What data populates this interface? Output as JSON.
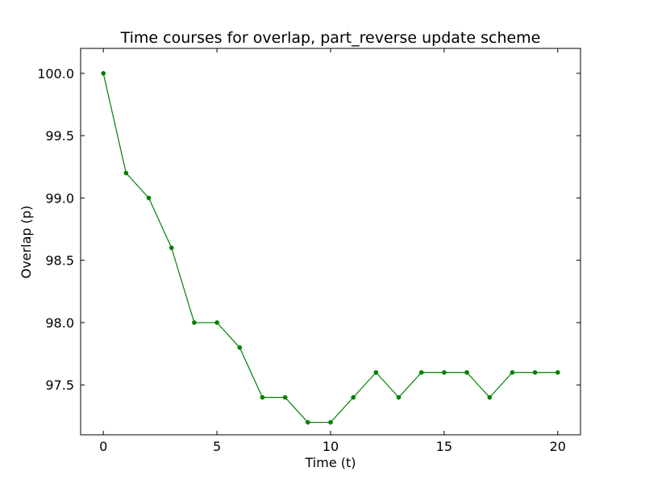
{
  "chart_data": {
    "type": "line",
    "title": "Time courses for overlap, part_reverse update scheme",
    "xlabel": "Time (t)",
    "ylabel": "Overlap (p)",
    "xlim": [
      -1,
      21
    ],
    "ylim": [
      97.1,
      100.2
    ],
    "x_ticks": [
      0,
      5,
      10,
      15,
      20
    ],
    "x_tick_labels": [
      "0",
      "5",
      "10",
      "15",
      "20"
    ],
    "y_ticks": [
      97.5,
      98.0,
      98.5,
      99.0,
      99.5,
      100.0
    ],
    "y_tick_labels": [
      "97.5",
      "98.0",
      "98.5",
      "99.0",
      "99.5",
      "100.0"
    ],
    "grid": false,
    "series": [
      {
        "color": "#008000",
        "marker": "circle",
        "x": [
          0,
          1,
          2,
          3,
          4,
          5,
          6,
          7,
          8,
          9,
          10,
          11,
          12,
          13,
          14,
          15,
          16,
          17,
          18,
          19,
          20
        ],
        "y": [
          100.0,
          99.2,
          99.0,
          98.6,
          98.0,
          98.0,
          97.8,
          97.4,
          97.4,
          97.2,
          97.2,
          97.4,
          97.6,
          97.4,
          97.6,
          97.6,
          97.6,
          97.4,
          97.6,
          97.6,
          97.6
        ]
      }
    ]
  }
}
